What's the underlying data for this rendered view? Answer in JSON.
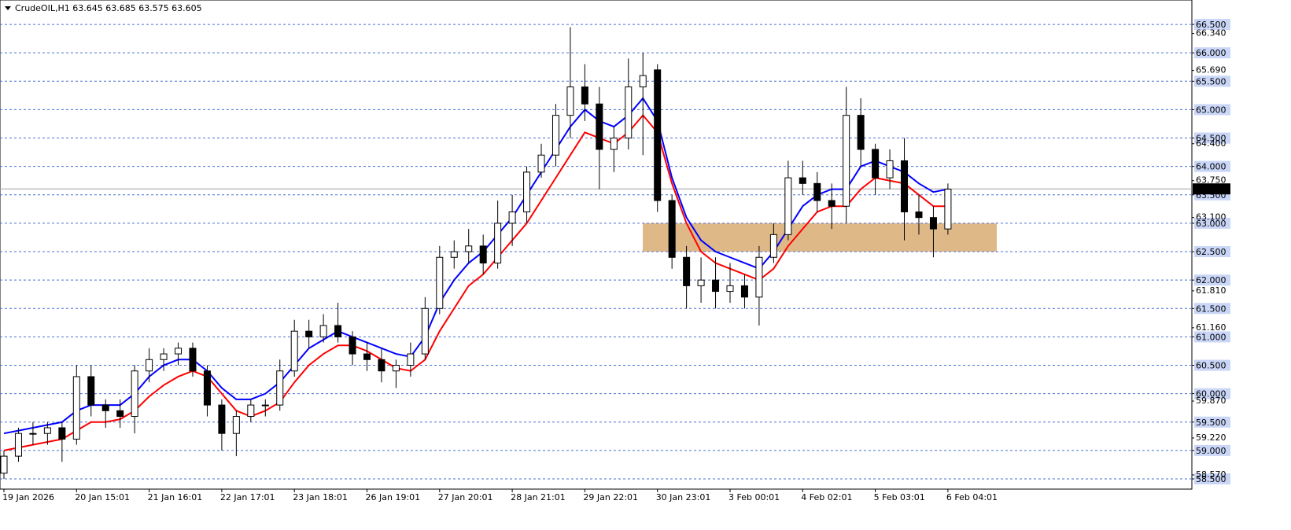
{
  "chart_data": {
    "type": "candlestick",
    "title": "CrudeOIL,H1  63.645 63.685 63.575 63.605",
    "categories": [
      "19 Jan 2026",
      null,
      null,
      null,
      null,
      "20 Jan 15:01",
      null,
      null,
      null,
      null,
      "21 Jan 16:01",
      null,
      null,
      null,
      null,
      "22 Jan 17:01",
      null,
      null,
      null,
      null,
      "23 Jan 18:01",
      null,
      null,
      null,
      null,
      "26 Jan 19:01",
      null,
      null,
      null,
      null,
      "27 Jan 20:01",
      null,
      null,
      null,
      null,
      "28 Jan 21:01",
      null,
      null,
      null,
      null,
      "29 Jan 22:01",
      null,
      null,
      null,
      null,
      "30 Jan 23:01",
      null,
      null,
      null,
      null,
      "3 Feb 00:01",
      null,
      null,
      null,
      null,
      "4 Feb 02:01",
      null,
      null,
      null,
      null,
      "5 Feb 03:01",
      null,
      null,
      null,
      null,
      "6 Feb 04:01"
    ],
    "open": [
      58.6,
      58.9,
      59.3,
      59.3,
      59.4,
      59.2,
      60.3,
      59.8,
      59.7,
      59.6,
      60.4,
      60.6,
      60.7,
      60.8,
      60.4,
      59.8,
      59.3,
      59.6,
      59.8,
      59.8,
      60.4,
      61.1,
      61.0,
      61.2,
      61.0,
      60.7,
      60.6,
      60.4,
      60.5,
      60.7,
      61.5,
      62.4,
      62.5,
      62.6,
      62.3,
      63.0,
      63.2,
      63.9,
      64.2,
      64.9,
      65.4,
      65.1,
      64.3,
      64.5,
      65.4,
      65.7,
      63.4,
      62.4,
      61.9,
      62.0,
      61.8,
      61.9,
      61.7,
      62.4,
      62.8,
      63.8,
      63.7,
      63.4,
      63.3,
      64.9,
      64.3,
      63.8,
      64.1,
      63.2,
      63.1,
      62.9
    ],
    "high": [
      59.0,
      59.4,
      59.5,
      59.5,
      59.5,
      60.5,
      60.5,
      59.9,
      59.9,
      60.5,
      60.8,
      60.8,
      60.9,
      60.9,
      60.5,
      59.9,
      59.7,
      59.9,
      59.9,
      60.6,
      61.3,
      61.3,
      61.4,
      61.6,
      61.1,
      60.9,
      60.8,
      60.6,
      60.9,
      61.7,
      62.6,
      62.7,
      62.9,
      62.8,
      63.4,
      63.5,
      64.0,
      64.4,
      65.1,
      66.45,
      65.8,
      65.4,
      64.7,
      65.9,
      66.0,
      65.8,
      63.5,
      62.6,
      62.4,
      62.4,
      62.3,
      62.1,
      62.6,
      63.0,
      64.1,
      64.1,
      63.9,
      63.7,
      65.4,
      65.2,
      64.4,
      64.3,
      64.5,
      63.5,
      63.3,
      63.7
    ],
    "low": [
      58.5,
      58.8,
      59.1,
      59.1,
      58.8,
      59.1,
      59.6,
      59.4,
      59.4,
      59.3,
      60.2,
      60.4,
      60.5,
      60.3,
      59.6,
      59.0,
      58.9,
      59.5,
      59.6,
      59.7,
      60.3,
      60.8,
      60.9,
      60.9,
      60.5,
      60.4,
      60.2,
      60.1,
      60.3,
      60.6,
      61.4,
      62.2,
      62.3,
      62.1,
      62.2,
      62.6,
      63.0,
      63.8,
      64.0,
      64.5,
      64.8,
      63.6,
      63.9,
      64.3,
      64.2,
      63.2,
      62.2,
      61.5,
      61.6,
      61.5,
      61.6,
      61.5,
      61.2,
      62.3,
      62.7,
      63.5,
      63.2,
      62.9,
      63.0,
      64.0,
      63.5,
      63.6,
      62.7,
      62.8,
      62.4,
      62.8
    ],
    "close": [
      58.9,
      59.3,
      59.3,
      59.4,
      59.2,
      60.3,
      59.8,
      59.7,
      59.6,
      60.4,
      60.6,
      60.7,
      60.8,
      60.4,
      59.8,
      59.3,
      59.6,
      59.8,
      59.8,
      60.4,
      61.1,
      61.0,
      61.2,
      61.0,
      60.7,
      60.6,
      60.4,
      60.5,
      60.7,
      61.5,
      62.4,
      62.5,
      62.6,
      62.3,
      63.0,
      63.2,
      63.9,
      64.2,
      64.9,
      65.4,
      65.1,
      64.3,
      64.5,
      65.4,
      65.6,
      63.4,
      62.4,
      61.9,
      62.0,
      61.8,
      61.9,
      61.7,
      62.4,
      62.8,
      63.8,
      63.7,
      63.4,
      63.3,
      64.9,
      64.3,
      63.8,
      64.1,
      63.2,
      63.1,
      62.9,
      63.6
    ],
    "bull_color": "#ffffff",
    "bear_color": "#000000",
    "series": [
      {
        "color": "#0000ff",
        "values": [
          59.3,
          59.35,
          59.4,
          59.45,
          59.5,
          59.7,
          59.8,
          59.8,
          59.8,
          60.0,
          60.3,
          60.5,
          60.6,
          60.6,
          60.4,
          60.1,
          59.9,
          59.9,
          60.0,
          60.2,
          60.5,
          60.8,
          60.95,
          61.1,
          61.0,
          60.9,
          60.8,
          60.7,
          60.65,
          61.0,
          61.6,
          62.0,
          62.3,
          62.5,
          62.8,
          63.1,
          63.5,
          63.9,
          64.3,
          64.7,
          65.0,
          64.8,
          64.7,
          64.9,
          65.2,
          64.8,
          63.8,
          63.1,
          62.7,
          62.5,
          62.4,
          62.3,
          62.2,
          62.5,
          62.9,
          63.3,
          63.5,
          63.6,
          63.6,
          64.0,
          64.1,
          64.0,
          63.9,
          63.7,
          63.55,
          63.6
        ]
      },
      {
        "color": "#ff0000",
        "values": [
          59.0,
          59.05,
          59.1,
          59.15,
          59.2,
          59.35,
          59.5,
          59.5,
          59.55,
          59.7,
          59.95,
          60.15,
          60.3,
          60.4,
          60.3,
          60.0,
          59.7,
          59.6,
          59.7,
          59.85,
          60.2,
          60.5,
          60.7,
          60.85,
          60.85,
          60.75,
          60.6,
          60.45,
          60.4,
          60.6,
          61.1,
          61.5,
          61.9,
          62.1,
          62.4,
          62.7,
          63.0,
          63.4,
          63.8,
          64.2,
          64.6,
          64.5,
          64.4,
          64.6,
          64.9,
          64.6,
          63.7,
          63.0,
          62.5,
          62.3,
          62.2,
          62.1,
          62.0,
          62.2,
          62.6,
          62.9,
          63.2,
          63.3,
          63.3,
          63.6,
          63.8,
          63.75,
          63.7,
          63.5,
          63.3,
          63.3
        ]
      }
    ],
    "zone": {
      "ymin": 62.5,
      "ymax": 63.0,
      "color": "#deb887"
    },
    "last_price": 63.605,
    "ylim": [
      58.32,
      66.93
    ],
    "yticks": [
      {
        "value": 66.5,
        "label": "66.500"
      },
      {
        "value": 66,
        "label": "66.000"
      },
      {
        "value": 65.5,
        "label": "65.500"
      },
      {
        "value": 65,
        "label": "65.000"
      },
      {
        "value": 64.5,
        "label": "64.500"
      },
      {
        "value": 64,
        "label": "64.000"
      },
      {
        "value": 63.5,
        "label": "63.500"
      },
      {
        "value": 63,
        "label": "63.000"
      },
      {
        "value": 62.5,
        "label": "62.500"
      },
      {
        "value": 62,
        "label": "62.000"
      },
      {
        "value": 61.5,
        "label": "61.500"
      },
      {
        "value": 61,
        "label": "61.000"
      },
      {
        "value": 60.5,
        "label": "60.500"
      },
      {
        "value": 60,
        "label": "60.000"
      },
      {
        "value": 59.5,
        "label": "59.500"
      },
      {
        "value": 59,
        "label": "59.000"
      },
      {
        "value": 58.5,
        "label": "58.500"
      }
    ],
    "minor_yticks": [
      {
        "value": 66.34,
        "label": "66.340"
      },
      {
        "value": 65.69,
        "label": "65.690"
      },
      {
        "value": 64.4,
        "label": "64.400"
      },
      {
        "value": 63.75,
        "label": "63.750"
      },
      {
        "value": 63.1,
        "label": "63.100"
      },
      {
        "value": 61.81,
        "label": "61.810"
      },
      {
        "value": 61.16,
        "label": "61.160"
      },
      {
        "value": 59.87,
        "label": "59.870"
      },
      {
        "value": 59.22,
        "label": "59.220"
      },
      {
        "value": 58.57,
        "label": "58.570"
      }
    ],
    "grid": true,
    "grid_color": "#4a6fd6"
  }
}
